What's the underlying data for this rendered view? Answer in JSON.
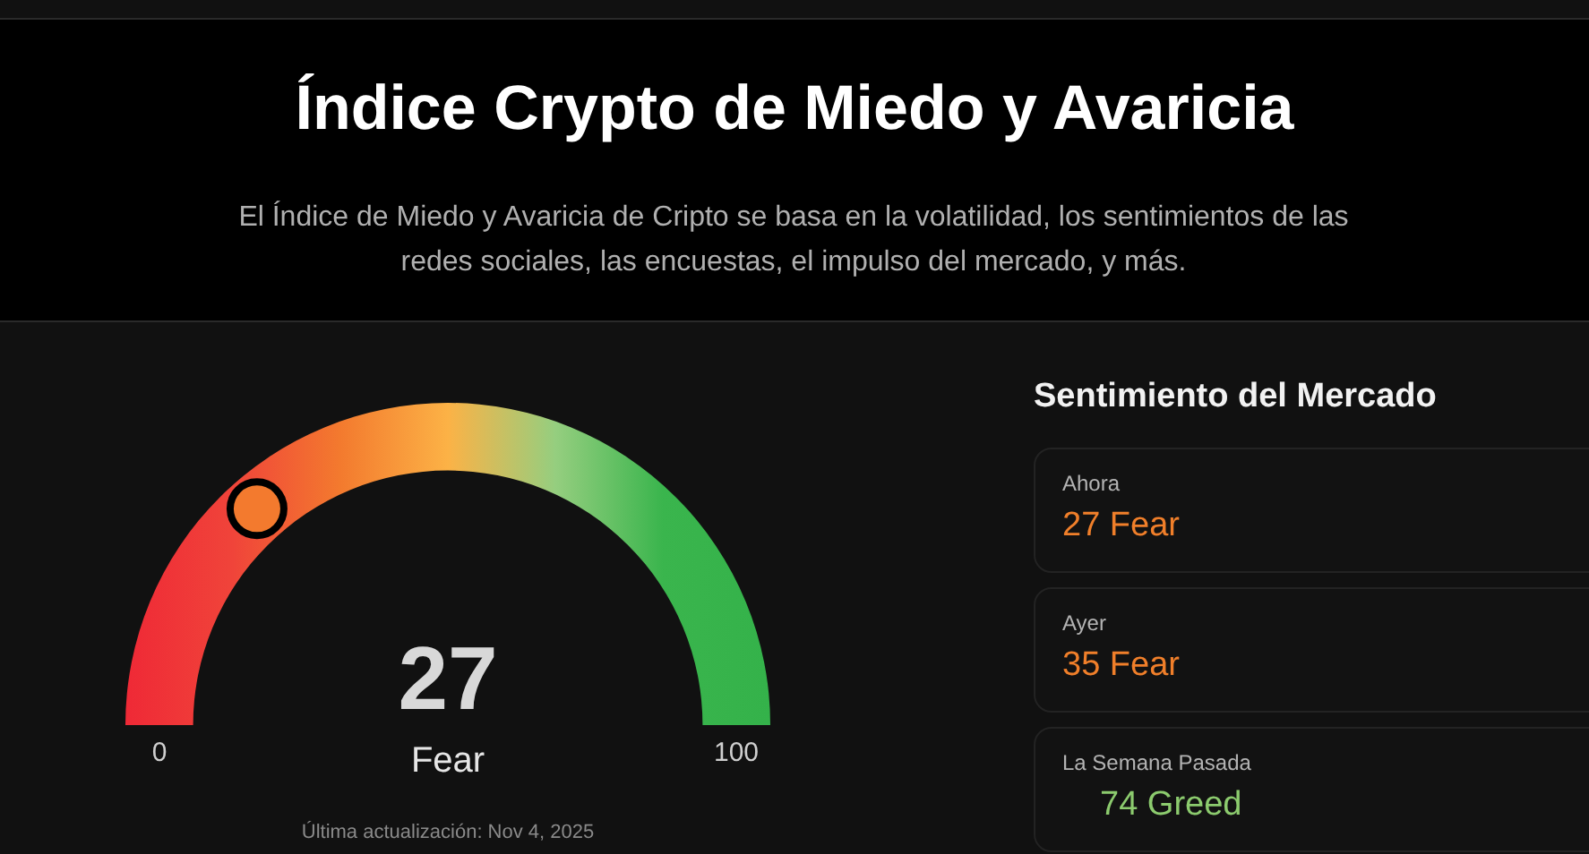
{
  "chart_data": [
    {
      "type": "other",
      "title": "Índice Crypto de Miedo y Avaricia",
      "subtitle": "El Índice de Miedo y Avaricia de Cripto se basa en la volatilidad, los sentimientos de las redes sociales, las encuestas, el impulso del mercado, y más.",
      "categories": [
        "Fear"
      ],
      "values": [
        27
      ],
      "data_labels": true,
      "annotations": [
        "0",
        "100",
        "Última actualización: Nov 4, 2025"
      ]
    },
    {
      "type": "other",
      "title": "Sentimiento del Mercado",
      "categories": [
        "Ahora",
        "Ayer",
        "La Semana Pasada"
      ],
      "value_labels": [
        "27 Fear",
        "35 Fear",
        "74 Greed"
      ]
    }
  ]
}
